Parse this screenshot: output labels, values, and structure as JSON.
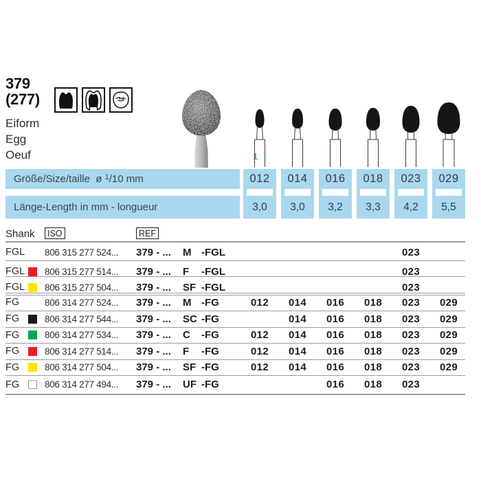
{
  "header": {
    "figure_number": "379",
    "figure_number_secondary": "(277)",
    "shape_names": [
      "Eiform",
      "Egg",
      "Oeuf"
    ],
    "indication_icons": [
      "molar-crown-icon",
      "prepared-tooth-icon",
      "occlusal-surface-icon"
    ]
  },
  "size_band": {
    "diameter_label": "Größe/Size/taille",
    "diameter_symbol": "ø",
    "diameter_fraction_sup": "1",
    "diameter_fraction_rest": "/10 mm",
    "length_label": "Länge-Length in mm - longueur",
    "sizes": [
      "012",
      "014",
      "016",
      "018",
      "023",
      "029"
    ],
    "lengths": [
      "3,0",
      "3,0",
      "3,2",
      "3,3",
      "4,2",
      "5,5"
    ]
  },
  "figure_caption": {
    "index_label": "1"
  },
  "spec_table": {
    "headers": {
      "shank": "Shank",
      "iso": "ISO",
      "ref": "REF"
    },
    "rows": [
      {
        "shank": "FGL",
        "grit": "",
        "iso": "806 315 277 524...",
        "ref_prefix": "379 - ...",
        "ref_grit": "M",
        "ref_suffix": "-FGL",
        "sizes": [
          "",
          "",
          "",
          "",
          "023",
          ""
        ]
      },
      {
        "shank": "FGL",
        "grit": "red",
        "iso": "806 315 277 514...",
        "ref_prefix": "379 - ...",
        "ref_grit": "F",
        "ref_suffix": "-FGL",
        "sizes": [
          "",
          "",
          "",
          "",
          "023",
          ""
        ]
      },
      {
        "shank": "FGL",
        "grit": "yellow",
        "iso": "806 315 277 504...",
        "ref_prefix": "379 - ...",
        "ref_grit": "SF",
        "ref_suffix": "-FGL",
        "sizes": [
          "",
          "",
          "",
          "",
          "023",
          ""
        ]
      },
      {
        "shank": "FG",
        "grit": "",
        "iso": "806 314 277 524...",
        "ref_prefix": "379 - ...",
        "ref_grit": "M",
        "ref_suffix": "-FG",
        "sizes": [
          "012",
          "014",
          "016",
          "018",
          "023",
          "029"
        ]
      },
      {
        "shank": "FG",
        "grit": "black",
        "iso": "806 314 277 544...",
        "ref_prefix": "379 - ...",
        "ref_grit": "SC",
        "ref_suffix": "-FG",
        "sizes": [
          "",
          "014",
          "016",
          "018",
          "023",
          "029"
        ]
      },
      {
        "shank": "FG",
        "grit": "green",
        "iso": "806 314 277 534...",
        "ref_prefix": "379 - ...",
        "ref_grit": "C",
        "ref_suffix": "-FG",
        "sizes": [
          "012",
          "014",
          "016",
          "018",
          "023",
          "029"
        ]
      },
      {
        "shank": "FG",
        "grit": "red",
        "iso": "806 314 277 514...",
        "ref_prefix": "379 - ...",
        "ref_grit": "F",
        "ref_suffix": "-FG",
        "sizes": [
          "012",
          "014",
          "016",
          "018",
          "023",
          "029"
        ]
      },
      {
        "shank": "FG",
        "grit": "yellow",
        "iso": "806 314 277 504...",
        "ref_prefix": "379 - ...",
        "ref_grit": "SF",
        "ref_suffix": "-FG",
        "sizes": [
          "012",
          "014",
          "016",
          "018",
          "023",
          "029"
        ]
      },
      {
        "shank": "FG",
        "grit": "white",
        "iso": "806 314 277 494...",
        "ref_prefix": "379 - ...",
        "ref_grit": "UF",
        "ref_suffix": "-FG",
        "sizes": [
          "",
          "",
          "016",
          "018",
          "023",
          ""
        ]
      }
    ],
    "group_break_after_row": 3
  },
  "colors": {
    "band_cyan": "#a9d8ee",
    "accent_cyan": "#2aa9e0",
    "grit_red": "#ed1c24",
    "grit_yellow": "#fde500",
    "grit_green": "#00a551",
    "grit_black": "#1a1a1a",
    "grit_white": "#ffffff"
  }
}
